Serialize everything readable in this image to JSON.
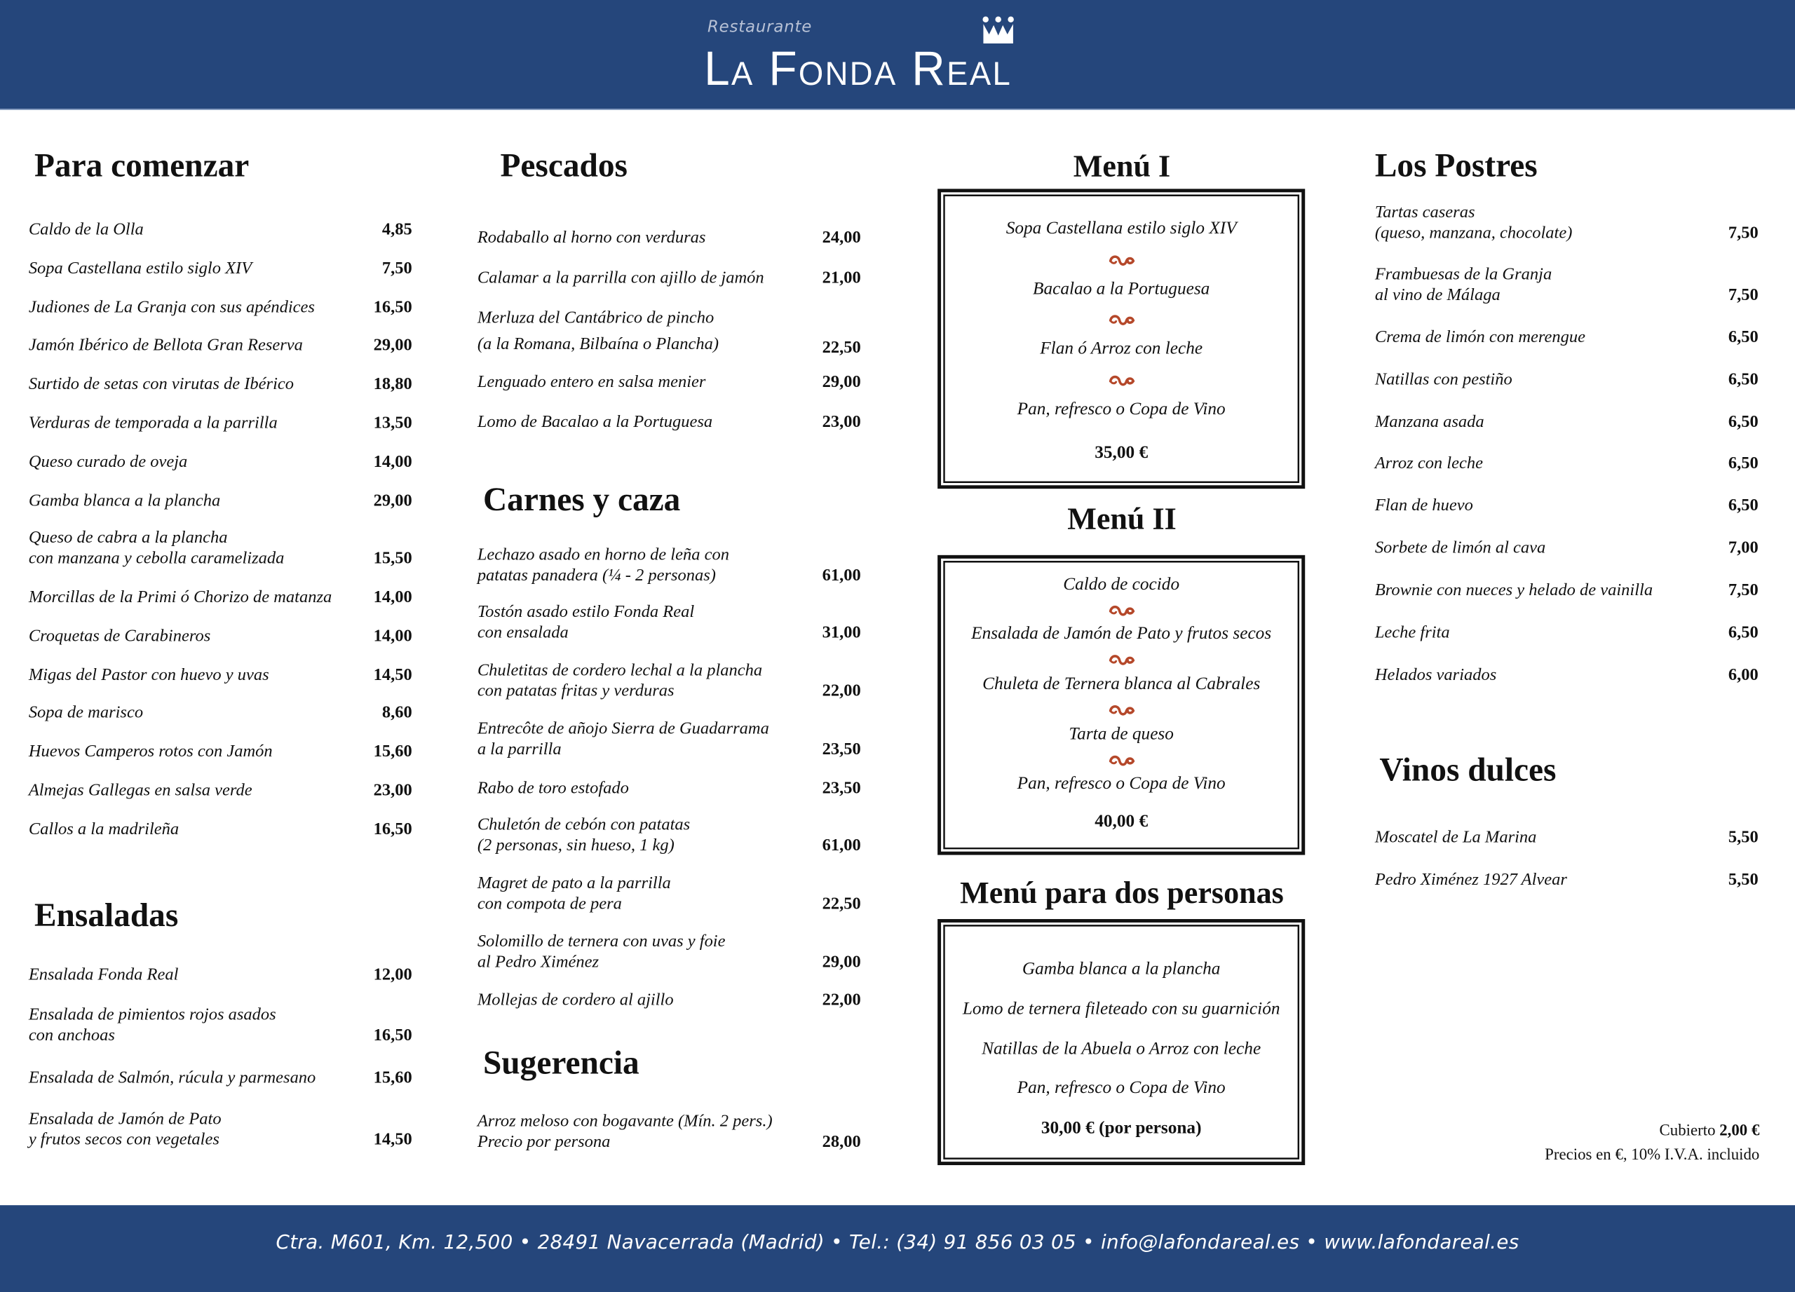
{
  "header": {
    "subtitle": "Restaurante",
    "brand": "La Fonda Real",
    "logo_icon": "crown-icon",
    "background": "#25467b"
  },
  "sections": {
    "starters": {
      "title": "Para comenzar",
      "items": [
        {
          "lines": [
            "Caldo de la Olla"
          ],
          "price": "4,85"
        },
        {
          "lines": [
            "Sopa Castellana estilo siglo XIV"
          ],
          "price": "7,50"
        },
        {
          "lines": [
            "Judiones de La Granja con sus apéndices"
          ],
          "price": "16,50"
        },
        {
          "lines": [
            "Jamón Ibérico de Bellota Gran Reserva"
          ],
          "price": "29,00"
        },
        {
          "lines": [
            "Surtido de setas con virutas de Ibérico"
          ],
          "price": "18,80"
        },
        {
          "lines": [
            "Verduras de temporada a la parrilla"
          ],
          "price": "13,50"
        },
        {
          "lines": [
            "Queso curado de oveja"
          ],
          "price": "14,00"
        },
        {
          "lines": [
            "Gamba blanca a la plancha"
          ],
          "price": "29,00"
        },
        {
          "lines": [
            "Queso de cabra a la plancha",
            "con manzana y cebolla caramelizada"
          ],
          "price": "15,50"
        },
        {
          "lines": [
            "Morcillas de la Primi ó Chorizo de matanza"
          ],
          "price": "14,00"
        },
        {
          "lines": [
            "Croquetas de Carabineros"
          ],
          "price": "14,00"
        },
        {
          "lines": [
            "Migas del Pastor con huevo y uvas"
          ],
          "price": "14,50"
        },
        {
          "lines": [
            "Sopa de marisco"
          ],
          "price": "8,60"
        },
        {
          "lines": [
            "Huevos Camperos rotos con Jamón"
          ],
          "price": "15,60"
        },
        {
          "lines": [
            "Almejas Gallegas en salsa verde"
          ],
          "price": "23,00"
        },
        {
          "lines": [
            "Callos a la madrileña"
          ],
          "price": "16,50"
        }
      ]
    },
    "ensaladas": {
      "title": "Ensaladas",
      "items": [
        {
          "lines": [
            "Ensalada Fonda Real"
          ],
          "price": "12,00"
        },
        {
          "lines": [
            "Ensalada de pimientos rojos asados",
            "con anchoas"
          ],
          "price": "16,50"
        },
        {
          "lines": [
            "Ensalada de Salmón, rúcula y parmesano"
          ],
          "price": "15,60"
        },
        {
          "lines": [
            "Ensalada de Jamón de Pato",
            "y frutos secos con vegetales"
          ],
          "price": "14,50"
        }
      ]
    },
    "pescados": {
      "title": "Pescados",
      "items": [
        {
          "lines": [
            "Rodaballo al horno con verduras"
          ],
          "price": "24,00"
        },
        {
          "lines": [
            "Calamar a la parrilla con ajillo de jamón"
          ],
          "price": "21,00"
        },
        {
          "lines": [
            "Merluza del Cantábrico de pincho",
            "(a la Romana, Bilbaína o Plancha)"
          ],
          "price": "22,50"
        },
        {
          "lines": [
            "Lenguado entero en salsa menier"
          ],
          "price": "29,00"
        },
        {
          "lines": [
            "Lomo de Bacalao a la Portuguesa"
          ],
          "price": "23,00"
        }
      ]
    },
    "carnes": {
      "title": "Carnes y caza",
      "items": [
        {
          "lines": [
            "Lechazo asado en horno de leña con",
            "patatas panadera (¼ - 2 personas)"
          ],
          "price": "61,00"
        },
        {
          "lines": [
            "Tostón asado estilo Fonda Real",
            "con ensalada"
          ],
          "price": "31,00"
        },
        {
          "lines": [
            "Chuletitas de cordero lechal a la plancha",
            "con patatas fritas y verduras"
          ],
          "price": "22,00"
        },
        {
          "lines": [
            "Entrecôte de añojo Sierra de Guadarrama",
            "a la parrilla"
          ],
          "price": "23,50"
        },
        {
          "lines": [
            "Rabo de toro estofado"
          ],
          "price": "23,50"
        },
        {
          "lines": [
            "Chuletón de cebón con patatas",
            "(2 personas, sin hueso, 1 kg)"
          ],
          "price": "61,00"
        },
        {
          "lines": [
            "Magret de pato a la parrilla",
            "con compota de pera"
          ],
          "price": "22,50"
        },
        {
          "lines": [
            "Solomillo de ternera con uvas y foie",
            "al Pedro Ximénez"
          ],
          "price": "29,00"
        },
        {
          "lines": [
            "Mollejas de cordero al ajillo"
          ],
          "price": "22,00"
        }
      ]
    },
    "sugerencia": {
      "title": "Sugerencia",
      "items": [
        {
          "lines": [
            "Arroz meloso con bogavante (Mín. 2 pers.)",
            "Precio por persona"
          ],
          "price": "28,00"
        }
      ]
    },
    "postres": {
      "title": "Los Postres",
      "items": [
        {
          "lines": [
            "Tartas caseras",
            "(queso, manzana, chocolate)"
          ],
          "price": "7,50"
        },
        {
          "lines": [
            "Frambuesas de la Granja",
            "al vino de Málaga"
          ],
          "price": "7,50"
        },
        {
          "lines": [
            "Crema de limón con merengue"
          ],
          "price": "6,50"
        },
        {
          "lines": [
            "Natillas con pestiño"
          ],
          "price": "6,50"
        },
        {
          "lines": [
            "Manzana asada"
          ],
          "price": "6,50"
        },
        {
          "lines": [
            "Arroz con leche"
          ],
          "price": "6,50"
        },
        {
          "lines": [
            "Flan de huevo"
          ],
          "price": "6,50"
        },
        {
          "lines": [
            "Sorbete de limón al cava"
          ],
          "price": "7,00"
        },
        {
          "lines": [
            "Brownie con nueces y helado de vainilla"
          ],
          "price": "7,50"
        },
        {
          "lines": [
            "Leche frita"
          ],
          "price": "6,50"
        },
        {
          "lines": [
            "Helados variados"
          ],
          "price": "6,00"
        }
      ]
    },
    "vinos": {
      "title": "Vinos dulces",
      "items": [
        {
          "lines": [
            "Moscatel de La Marina"
          ],
          "price": "5,50"
        },
        {
          "lines": [
            "Pedro Ximénez 1927 Alvear"
          ],
          "price": "5,50"
        }
      ]
    }
  },
  "menus": [
    {
      "title": "Menú I",
      "courses": [
        "Sopa Castellana estilo siglo XIV",
        "Bacalao a la Portuguesa",
        "Flan ó Arroz con leche",
        "Pan, refresco o Copa de Vino"
      ],
      "price": "35,00 €",
      "separator_icon": "fleuron-icon"
    },
    {
      "title": "Menú II",
      "courses": [
        "Caldo de cocido",
        "Ensalada de Jamón de Pato y frutos secos",
        "Chuleta de Ternera blanca al Cabrales",
        "Tarta de queso",
        "Pan, refresco o Copa de Vino"
      ],
      "price": "40,00 €",
      "separator_icon": "fleuron-icon"
    },
    {
      "title": "Menú para dos personas",
      "courses": [
        "Gamba blanca a la plancha",
        "Lomo de ternera fileteado con su guarnición",
        "Natillas de la Abuela o Arroz con leche",
        "Pan, refresco o Copa de Vino"
      ],
      "price": "30,00 € (por persona)"
    }
  ],
  "notes": {
    "cover_label": "Cubierto",
    "cover_price": "2,00 €",
    "tax_note": "Precios en €, 10% I.V.A. incluido"
  },
  "footer": {
    "text": "Ctra. M601, Km. 12,500 • 28491 Navacerrada (Madrid) • Tel.: (34) 91 856 03 05 • info@lafondareal.es • www.lafondareal.es"
  },
  "colors": {
    "brand_blue": "#25467b",
    "ornament": "#b5482a",
    "text": "#111111"
  }
}
